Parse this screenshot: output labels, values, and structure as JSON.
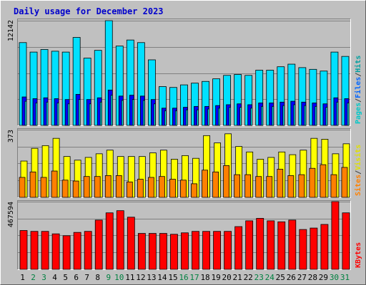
{
  "chart_data": {
    "type": "bar",
    "title": "Daily usage for December 2023",
    "categories": [
      "1",
      "2",
      "3",
      "4",
      "5",
      "6",
      "7",
      "8",
      "9",
      "10",
      "11",
      "12",
      "13",
      "14",
      "15",
      "16",
      "17",
      "18",
      "19",
      "20",
      "21",
      "22",
      "23",
      "24",
      "25",
      "26",
      "27",
      "28",
      "29",
      "30",
      "31"
    ],
    "weekend_days": [
      "2",
      "3",
      "9",
      "10",
      "16",
      "17",
      "23",
      "24",
      "30",
      "31"
    ],
    "panels": {
      "top": {
        "y_max_label": "12142",
        "ylim": [
          0,
          12142
        ],
        "legend": [
          "Pages",
          "/",
          "Files",
          "/",
          "Hits"
        ],
        "legend_colors": [
          "#00c8c8",
          "#404040",
          "#0066ff",
          "#404040",
          "#00a0a0"
        ],
        "series": [
          {
            "name": "Hits",
            "color": "#00e0ff",
            "values": [
              9600,
              8500,
              8800,
              8600,
              8500,
              10200,
              7800,
              8700,
              12142,
              9200,
              9900,
              9600,
              7600,
              4500,
              4400,
              4700,
              4900,
              5100,
              5400,
              5800,
              5900,
              5800,
              6400,
              6400,
              6800,
              7100,
              6700,
              6500,
              6300,
              8500,
              8000
            ]
          },
          {
            "name": "Files",
            "color": "#0000ff",
            "values": [
              3300,
              3100,
              3200,
              3100,
              3000,
              3600,
              3000,
              3200,
              4100,
              3400,
              3500,
              3400,
              3000,
              2000,
              2000,
              2100,
              2200,
              2200,
              2300,
              2400,
              2500,
              2400,
              2600,
              2600,
              2700,
              2800,
              2700,
              2600,
              2500,
              3200,
              3100
            ]
          },
          {
            "name": "Pages",
            "color": "#00ffff",
            "values": [
              2800,
              2600,
              2700,
              2600,
              2500,
              3000,
              2500,
              2700,
              3500,
              2900,
              3000,
              2900,
              2500,
              1700,
              1700,
              1800,
              1800,
              1900,
              2000,
              2100,
              2100,
              2000,
              2200,
              2200,
              2300,
              2400,
              2300,
              2200,
              2100,
              2700,
              2600
            ]
          }
        ]
      },
      "mid": {
        "y_max_label": "373",
        "ylim": [
          0,
          373
        ],
        "legend": [
          "Sites",
          "/",
          "Visits"
        ],
        "legend_colors": [
          "#ff8000",
          "#404040",
          "#e0e000"
        ],
        "series": [
          {
            "name": "Visits",
            "color": "#ffff00",
            "values": [
              200,
              270,
              285,
              325,
              225,
              205,
              220,
              240,
              260,
              225,
              225,
              225,
              245,
              260,
              210,
              230,
              215,
              340,
              300,
              350,
              280,
              250,
              210,
              220,
              250,
              235,
              260,
              325,
              320,
              240,
              295
            ]
          },
          {
            "name": "Sites",
            "color": "#ff8000",
            "values": [
              110,
              140,
              110,
              145,
              95,
              90,
              115,
              115,
              120,
              120,
              85,
              100,
              110,
              115,
              100,
              95,
              75,
              150,
              140,
              175,
              125,
              125,
              115,
              115,
              155,
              120,
              125,
              160,
              180,
              125,
              165
            ]
          }
        ]
      },
      "bottom": {
        "y_max_label": "467594",
        "ylim": [
          0,
          467594
        ],
        "legend": [
          "KBytes"
        ],
        "legend_colors": [
          "#ff0000"
        ],
        "series": [
          {
            "name": "KBytes",
            "color": "#ff0000",
            "values": [
              268000,
              262000,
              262000,
              245000,
              232000,
              255000,
              262000,
              340000,
              390000,
              405000,
              360000,
              248000,
              248000,
              248000,
              242000,
              252000,
              262000,
              262000,
              262000,
              262000,
              295000,
              335000,
              352000,
              335000,
              328000,
              340000,
              275000,
              285000,
              310000,
              467594,
              390000
            ]
          }
        ]
      }
    }
  }
}
